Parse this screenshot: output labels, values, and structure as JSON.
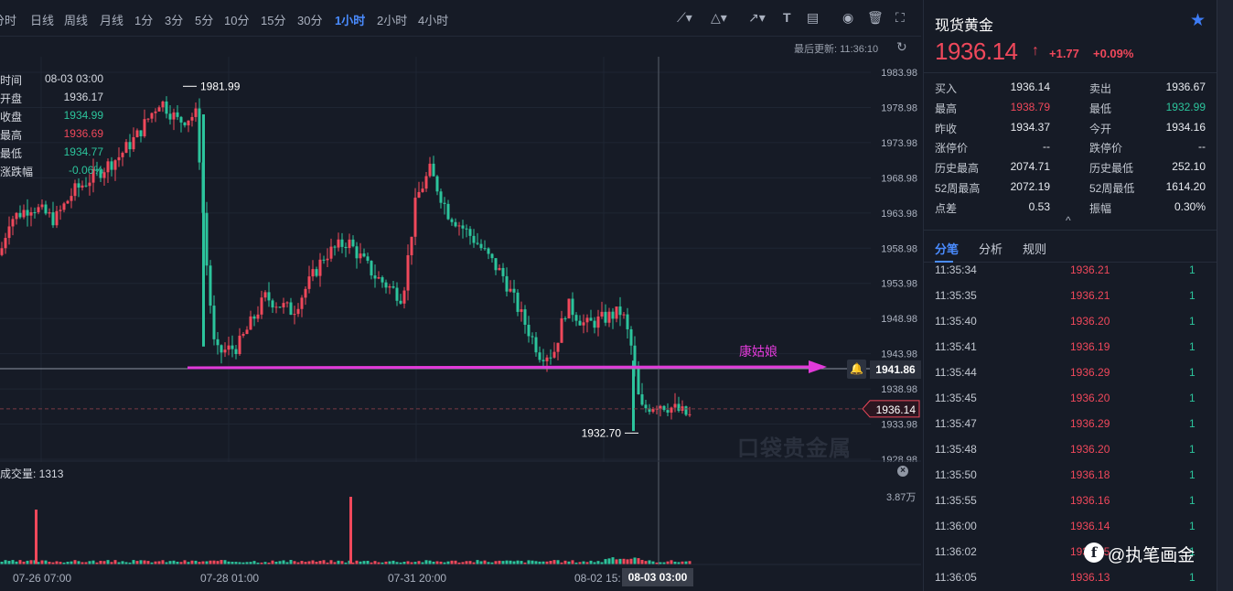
{
  "toolbar": {
    "periods": [
      {
        "label": "分时",
        "active": false
      },
      {
        "label": "日线",
        "active": false
      },
      {
        "label": "周线",
        "active": false
      },
      {
        "label": "月线",
        "active": false
      },
      {
        "label": "1分",
        "active": false
      },
      {
        "label": "3分",
        "active": false
      },
      {
        "label": "5分",
        "active": false
      },
      {
        "label": "10分",
        "active": false
      },
      {
        "label": "15分",
        "active": false
      },
      {
        "label": "30分",
        "active": false
      },
      {
        "label": "1小时",
        "active": true
      },
      {
        "label": "2小时",
        "active": false
      },
      {
        "label": "4小时",
        "active": false
      }
    ],
    "last_update": "最后更新: 11:36:10"
  },
  "chart_data": {
    "type": "candlestick",
    "y_ticks": [
      "1983.98",
      "1978.98",
      "1973.98",
      "1968.98",
      "1963.98",
      "1958.98",
      "1953.98",
      "1948.98",
      "1943.98",
      "1938.98",
      "1933.98",
      "1928.98"
    ],
    "ylim": [
      1928.98,
      1983.98
    ],
    "x_labels": [
      "07-26 07:00",
      "07-28 01:00",
      "07-31 20:00",
      "08-02 15:"
    ],
    "crosshair_time": "08-03 03:00",
    "high_marker": "1981.99",
    "low_marker": "1932.70",
    "info": [
      {
        "label": "时间",
        "value": "08-03 03:00",
        "color": "#d5d9e1"
      },
      {
        "label": "开盘",
        "value": "1936.17",
        "color": "#d5d9e1"
      },
      {
        "label": "收盘",
        "value": "1934.99",
        "color": "#2cc49c"
      },
      {
        "label": "最高",
        "value": "1936.69",
        "color": "#f0485b"
      },
      {
        "label": "最低",
        "value": "1934.77",
        "color": "#2cc49c"
      },
      {
        "label": "涨跌幅",
        "value": "-0.06%",
        "color": "#2cc49c"
      }
    ],
    "horizontal_line": {
      "value": "1941.86",
      "label": "康姑娘"
    },
    "current_price": "1936.14",
    "volume_title": "成交量: 1313",
    "volume_max": "3.87万",
    "watermark": "口袋贵金属",
    "colors": {
      "up": "#f0485b",
      "down": "#2cc49c",
      "annotation": "#e13ad9"
    }
  },
  "quote": {
    "name": "现货黄金",
    "price": "1936.14",
    "change": "+1.77",
    "change_pct": "+0.09%",
    "stats": [
      {
        "l1": "买入",
        "v1": "1936.14",
        "c1": "#e8ebf0",
        "l2": "卖出",
        "v2": "1936.67",
        "c2": "#e8ebf0"
      },
      {
        "l1": "最高",
        "v1": "1938.79",
        "c1": "#f0485b",
        "l2": "最低",
        "v2": "1932.99",
        "c2": "#2cc49c"
      },
      {
        "l1": "昨收",
        "v1": "1934.37",
        "c1": "#e8ebf0",
        "l2": "今开",
        "v2": "1934.16",
        "c2": "#e8ebf0"
      },
      {
        "l1": "涨停价",
        "v1": "--",
        "c1": "#e8ebf0",
        "l2": "跌停价",
        "v2": "--",
        "c2": "#e8ebf0"
      },
      {
        "l1": "历史最高",
        "v1": "2074.71",
        "c1": "#e8ebf0",
        "l2": "历史最低",
        "v2": "252.10",
        "c2": "#e8ebf0"
      },
      {
        "l1": "52周最高",
        "v1": "2072.19",
        "c1": "#e8ebf0",
        "l2": "52周最低",
        "v2": "1614.20",
        "c2": "#e8ebf0"
      },
      {
        "l1": "点差",
        "v1": "0.53",
        "c1": "#e8ebf0",
        "l2": "振幅",
        "v2": "0.30%",
        "c2": "#e8ebf0"
      }
    ],
    "tabs": [
      {
        "label": "分笔",
        "active": true
      },
      {
        "label": "分析",
        "active": false
      },
      {
        "label": "规则",
        "active": false
      }
    ],
    "ticks": [
      {
        "time": "11:35:34",
        "price": "1936.21",
        "vol": "1"
      },
      {
        "time": "11:35:35",
        "price": "1936.21",
        "vol": "1"
      },
      {
        "time": "11:35:40",
        "price": "1936.20",
        "vol": "1"
      },
      {
        "time": "11:35:41",
        "price": "1936.19",
        "vol": "1"
      },
      {
        "time": "11:35:44",
        "price": "1936.29",
        "vol": "1"
      },
      {
        "time": "11:35:45",
        "price": "1936.20",
        "vol": "1"
      },
      {
        "time": "11:35:47",
        "price": "1936.29",
        "vol": "1"
      },
      {
        "time": "11:35:48",
        "price": "1936.20",
        "vol": "1"
      },
      {
        "time": "11:35:50",
        "price": "1936.18",
        "vol": "1"
      },
      {
        "time": "11:35:55",
        "price": "1936.16",
        "vol": "1"
      },
      {
        "time": "11:36:00",
        "price": "1936.14",
        "vol": "1"
      },
      {
        "time": "11:36:02",
        "price": "1936.15",
        "vol": "1"
      },
      {
        "time": "11:36:05",
        "price": "1936.13",
        "vol": "1"
      }
    ]
  },
  "brand": {
    "text": "@执笔画金"
  }
}
